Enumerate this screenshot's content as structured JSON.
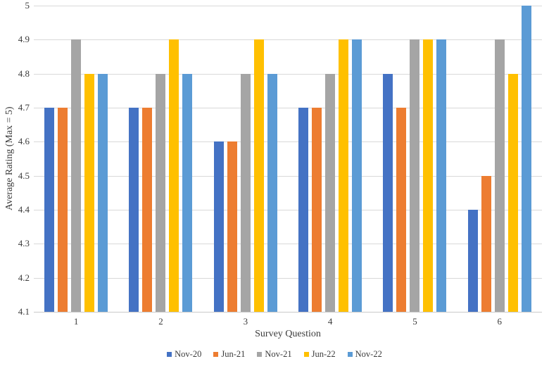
{
  "chart_data": {
    "type": "bar",
    "title": "",
    "xlabel": "Survey Question",
    "ylabel": "Average Rating (Max = 5)",
    "categories": [
      "1",
      "2",
      "3",
      "4",
      "5",
      "6"
    ],
    "series": [
      {
        "name": "Nov-20",
        "color": "#4472C4",
        "values": [
          4.7,
          4.7,
          4.6,
          4.7,
          4.8,
          4.4
        ]
      },
      {
        "name": "Jun-21",
        "color": "#ED7D31",
        "values": [
          4.7,
          4.7,
          4.6,
          4.7,
          4.7,
          4.5
        ]
      },
      {
        "name": "Nov-21",
        "color": "#A5A5A5",
        "values": [
          4.9,
          4.8,
          4.8,
          4.8,
          4.9,
          4.9
        ]
      },
      {
        "name": "Jun-22",
        "color": "#FFC000",
        "values": [
          4.8,
          4.9,
          4.9,
          4.9,
          4.9,
          4.8
        ]
      },
      {
        "name": "Nov-22",
        "color": "#5B9BD5",
        "values": [
          4.8,
          4.8,
          4.8,
          4.9,
          4.9,
          5.0
        ]
      }
    ],
    "ylim": [
      4.1,
      5.0
    ],
    "ytick_step": 0.1,
    "yticks": [
      "5",
      "4.9",
      "4.8",
      "4.7",
      "4.6",
      "4.5",
      "4.4",
      "4.3",
      "4.2",
      "4.1"
    ],
    "grid": true,
    "legend_position": "bottom",
    "colors": {
      "gridline": "#d9d9d9",
      "axis_line": "#c9c9c9",
      "text": "#3b3b3b"
    }
  }
}
